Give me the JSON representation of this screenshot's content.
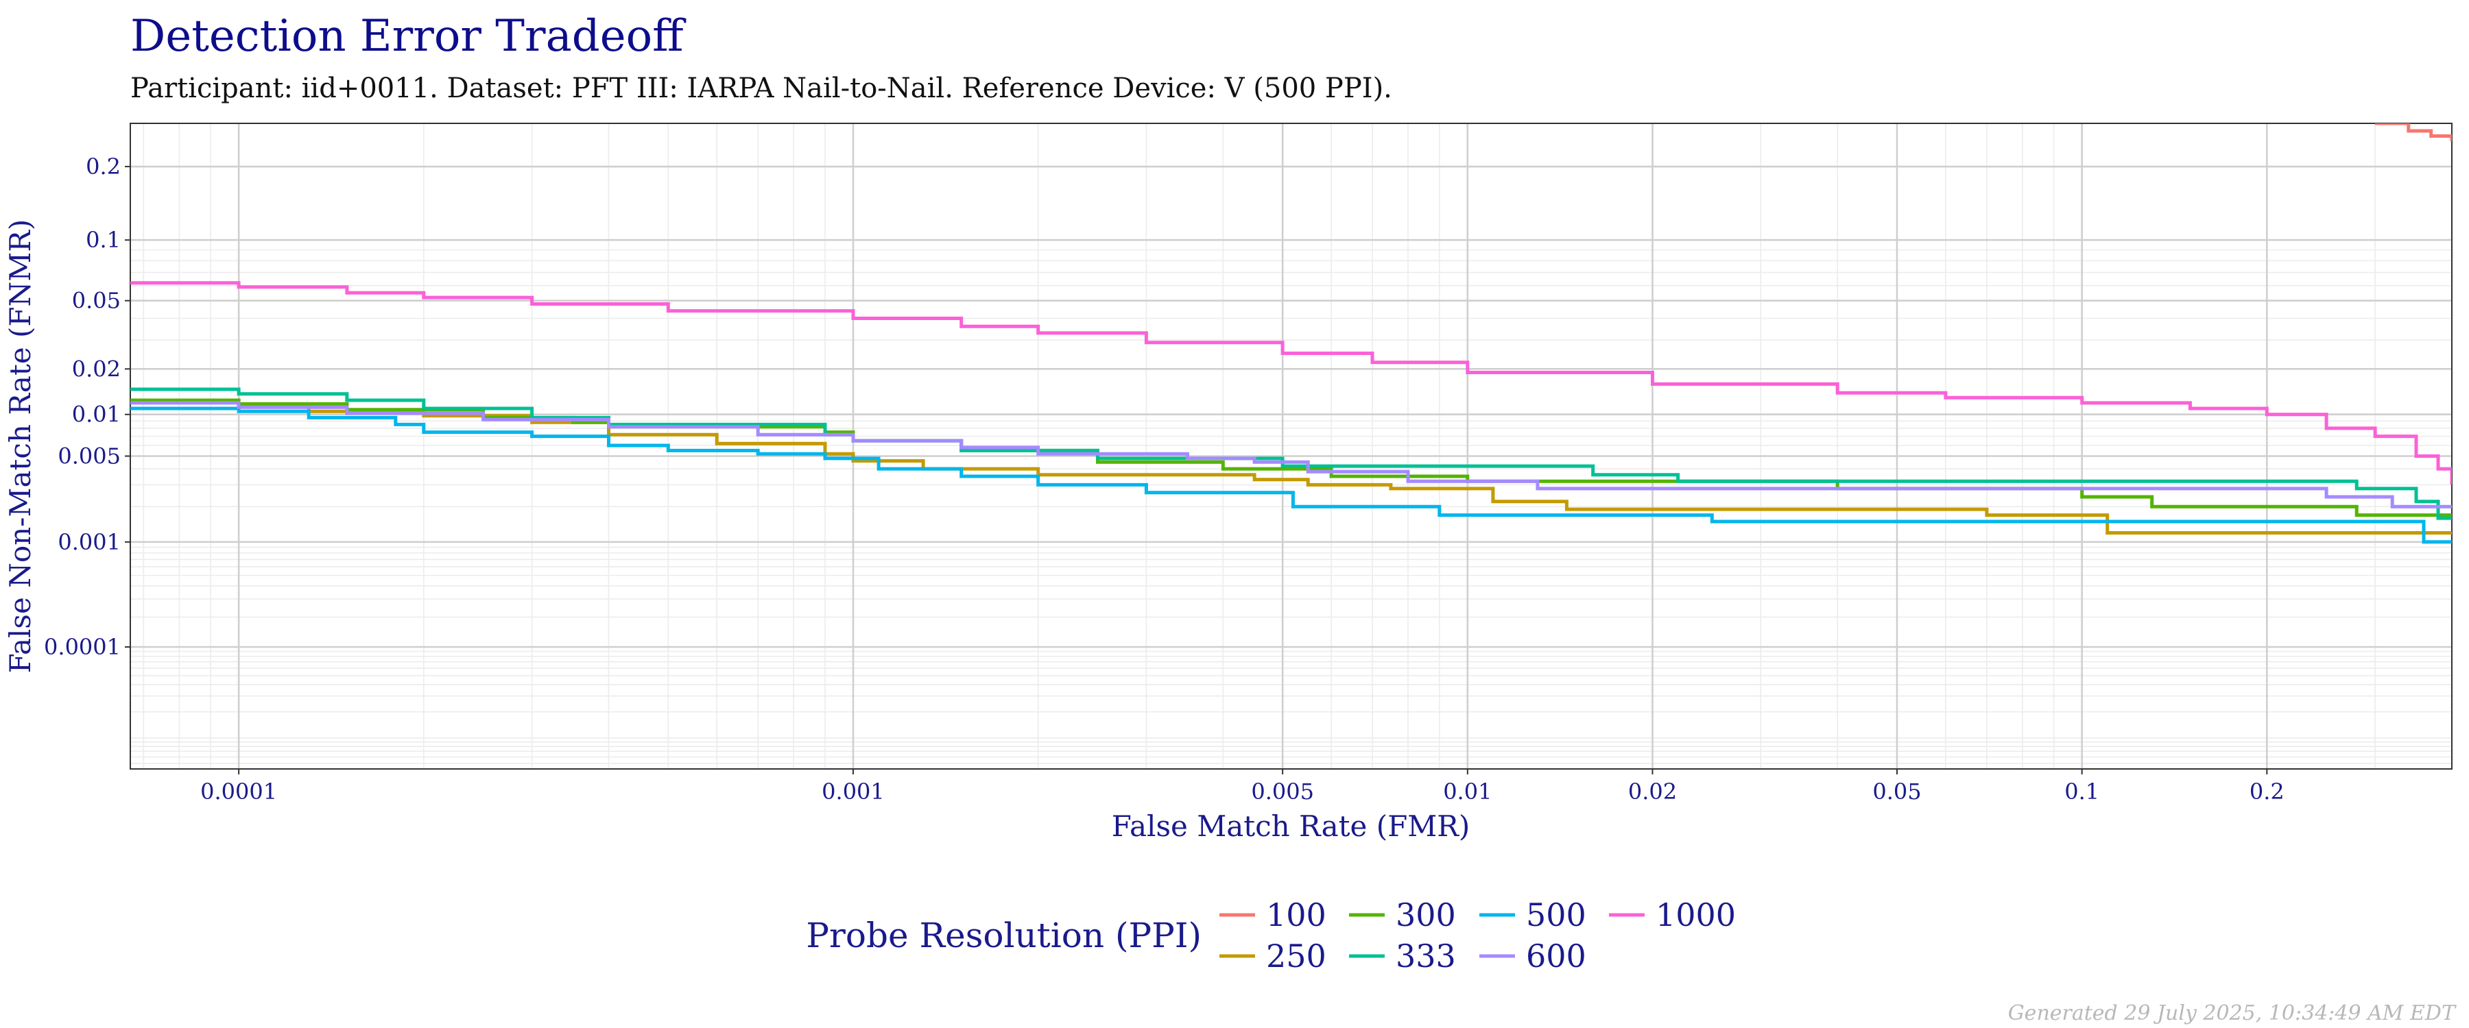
{
  "chart_data": {
    "type": "line",
    "title": "Detection Error Tradeoff",
    "subtitle": "Participant: iid+0011. Dataset: PFT III: IARPA Nail-to-Nail. Reference Device: V (500 PPI).",
    "xlabel": "False Match Rate (FMR)",
    "ylabel": "False Non-Match Rate (FNMR)",
    "x_scale": "log",
    "y_scale": "probit",
    "xlim": [
      6.66e-05,
      0.4
    ],
    "ylim": [
      4.3e-06,
      0.28
    ],
    "x_ticks": [
      {
        "value": 0.0001,
        "label": "0.0001"
      },
      {
        "value": 0.001,
        "label": "0.001"
      },
      {
        "value": 0.005,
        "label": "0.005"
      },
      {
        "value": 0.01,
        "label": "0.01"
      },
      {
        "value": 0.02,
        "label": "0.02"
      },
      {
        "value": 0.05,
        "label": "0.05"
      },
      {
        "value": 0.1,
        "label": "0.1"
      },
      {
        "value": 0.2,
        "label": "0.2"
      }
    ],
    "y_ticks": [
      {
        "value": 0.0001,
        "label": "0.0001"
      },
      {
        "value": 0.001,
        "label": "0.001"
      },
      {
        "value": 0.005,
        "label": "0.005"
      },
      {
        "value": 0.01,
        "label": "0.01"
      },
      {
        "value": 0.02,
        "label": "0.02"
      },
      {
        "value": 0.05,
        "label": "0.05"
      },
      {
        "value": 0.1,
        "label": "0.1"
      },
      {
        "value": 0.2,
        "label": "0.2"
      }
    ],
    "legend_title": "Probe Resolution (PPI)",
    "legend_position": "bottom",
    "series": [
      {
        "name": "100",
        "color": "#F8766D",
        "points": [
          [
            0.3,
            0.28
          ],
          [
            0.34,
            0.265
          ],
          [
            0.37,
            0.255
          ],
          [
            0.4,
            0.245
          ]
        ]
      },
      {
        "name": "250",
        "color": "#C49A00",
        "points": [
          [
            6.66e-05,
            0.0125
          ],
          [
            0.0001,
            0.0115
          ],
          [
            0.00013,
            0.0105
          ],
          [
            0.0002,
            0.0098
          ],
          [
            0.0003,
            0.0088
          ],
          [
            0.0004,
            0.0072
          ],
          [
            0.0006,
            0.0062
          ],
          [
            0.0009,
            0.0052
          ],
          [
            0.001,
            0.0046
          ],
          [
            0.0013,
            0.004
          ],
          [
            0.002,
            0.0036
          ],
          [
            0.0034,
            0.0036
          ],
          [
            0.0045,
            0.0033
          ],
          [
            0.0055,
            0.003
          ],
          [
            0.0075,
            0.0028
          ],
          [
            0.011,
            0.0022
          ],
          [
            0.0145,
            0.0019
          ],
          [
            0.07,
            0.0017
          ],
          [
            0.11,
            0.0012
          ],
          [
            0.4,
            0.0012
          ]
        ]
      },
      {
        "name": "300",
        "color": "#53B400",
        "points": [
          [
            6.66e-05,
            0.0125
          ],
          [
            0.0001,
            0.0118
          ],
          [
            0.00015,
            0.0108
          ],
          [
            0.00025,
            0.0095
          ],
          [
            0.00035,
            0.0088
          ],
          [
            0.0004,
            0.0082
          ],
          [
            0.0009,
            0.0075
          ],
          [
            0.001,
            0.0065
          ],
          [
            0.0015,
            0.0055
          ],
          [
            0.0025,
            0.0045
          ],
          [
            0.004,
            0.004
          ],
          [
            0.006,
            0.0035
          ],
          [
            0.01,
            0.0032
          ],
          [
            0.04,
            0.0028
          ],
          [
            0.1,
            0.0024
          ],
          [
            0.13,
            0.002
          ],
          [
            0.28,
            0.0017
          ],
          [
            0.4,
            0.0017
          ]
        ]
      },
      {
        "name": "333",
        "color": "#00C094",
        "points": [
          [
            6.66e-05,
            0.0148
          ],
          [
            0.0001,
            0.0138
          ],
          [
            0.00015,
            0.0125
          ],
          [
            0.0002,
            0.011
          ],
          [
            0.0003,
            0.0095
          ],
          [
            0.0004,
            0.0085
          ],
          [
            0.0009,
            0.0072
          ],
          [
            0.001,
            0.0065
          ],
          [
            0.0015,
            0.0055
          ],
          [
            0.0025,
            0.0048
          ],
          [
            0.005,
            0.0042
          ],
          [
            0.016,
            0.0036
          ],
          [
            0.022,
            0.0032
          ],
          [
            0.28,
            0.0028
          ],
          [
            0.35,
            0.0022
          ],
          [
            0.38,
            0.0016
          ],
          [
            0.4,
            0.0016
          ]
        ]
      },
      {
        "name": "500",
        "color": "#00B6EB",
        "points": [
          [
            6.66e-05,
            0.011
          ],
          [
            0.0001,
            0.0105
          ],
          [
            0.00013,
            0.0095
          ],
          [
            0.00018,
            0.0085
          ],
          [
            0.0002,
            0.0075
          ],
          [
            0.0003,
            0.007
          ],
          [
            0.0004,
            0.006
          ],
          [
            0.0005,
            0.0055
          ],
          [
            0.0007,
            0.0052
          ],
          [
            0.0009,
            0.0048
          ],
          [
            0.0011,
            0.004
          ],
          [
            0.0015,
            0.0035
          ],
          [
            0.002,
            0.003
          ],
          [
            0.003,
            0.0026
          ],
          [
            0.0052,
            0.002
          ],
          [
            0.009,
            0.0017
          ],
          [
            0.025,
            0.0015
          ],
          [
            0.35,
            0.0015
          ],
          [
            0.36,
            0.001
          ],
          [
            0.4,
            0.001
          ]
        ]
      },
      {
        "name": "600",
        "color": "#A58AFF",
        "points": [
          [
            6.66e-05,
            0.012
          ],
          [
            0.0001,
            0.0112
          ],
          [
            0.00015,
            0.0102
          ],
          [
            0.00025,
            0.0092
          ],
          [
            0.0004,
            0.0082
          ],
          [
            0.0007,
            0.0072
          ],
          [
            0.001,
            0.0065
          ],
          [
            0.0015,
            0.0058
          ],
          [
            0.002,
            0.0052
          ],
          [
            0.0035,
            0.0048
          ],
          [
            0.0045,
            0.0045
          ],
          [
            0.0055,
            0.0038
          ],
          [
            0.008,
            0.0032
          ],
          [
            0.013,
            0.0028
          ],
          [
            0.25,
            0.0024
          ],
          [
            0.32,
            0.002
          ],
          [
            0.4,
            0.002
          ]
        ]
      },
      {
        "name": "1000",
        "color": "#FB61D7",
        "points": [
          [
            6.66e-05,
            0.062
          ],
          [
            0.0001,
            0.059
          ],
          [
            0.00015,
            0.055
          ],
          [
            0.0002,
            0.052
          ],
          [
            0.0003,
            0.048
          ],
          [
            0.0005,
            0.044
          ],
          [
            0.001,
            0.04
          ],
          [
            0.0015,
            0.036
          ],
          [
            0.002,
            0.033
          ],
          [
            0.003,
            0.029
          ],
          [
            0.005,
            0.025
          ],
          [
            0.007,
            0.022
          ],
          [
            0.01,
            0.019
          ],
          [
            0.02,
            0.016
          ],
          [
            0.04,
            0.014
          ],
          [
            0.06,
            0.013
          ],
          [
            0.1,
            0.012
          ],
          [
            0.15,
            0.011
          ],
          [
            0.2,
            0.01
          ],
          [
            0.25,
            0.008
          ],
          [
            0.3,
            0.007
          ],
          [
            0.35,
            0.005
          ],
          [
            0.38,
            0.004
          ],
          [
            0.4,
            0.003
          ]
        ]
      }
    ]
  },
  "footer": "Generated 29 July 2025, 10:34:49 AM EDT"
}
